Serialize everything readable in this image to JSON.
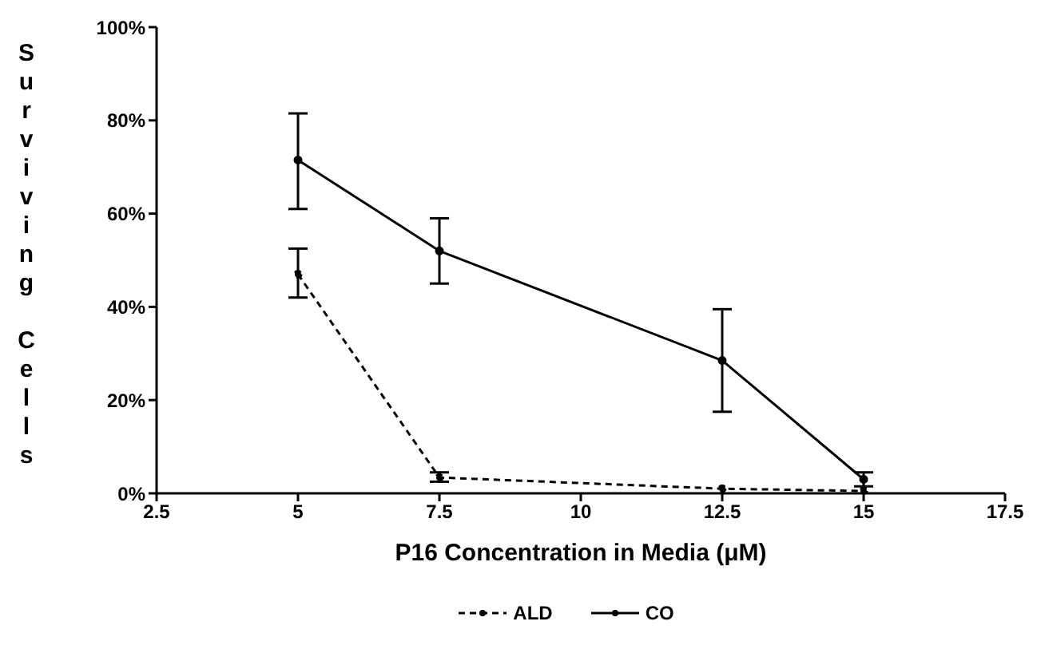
{
  "chart_data": {
    "type": "line",
    "xlabel": "P16 Concentration in Media (μM)",
    "ylabel": "Surviving Cells",
    "x": [
      5,
      7.5,
      12.5,
      15
    ],
    "series": [
      {
        "name": "ALD",
        "color": "#000000",
        "line_style": "dashed",
        "values": [
          47,
          3.4,
          1,
          0.5
        ],
        "errors": [
          [
            42,
            52.5
          ],
          [
            2.5,
            4.5
          ],
          null,
          null
        ]
      },
      {
        "name": "CO",
        "color": "#000000",
        "line_style": "solid",
        "values": [
          71.5,
          52,
          28.5,
          3
        ],
        "errors": [
          [
            61,
            81.5
          ],
          [
            45,
            59
          ],
          [
            17.5,
            39.5
          ],
          [
            1.5,
            4.5
          ]
        ]
      }
    ],
    "xlim": [
      2.5,
      17.5
    ],
    "xticks": [
      2.5,
      5,
      7.5,
      10,
      12.5,
      15,
      17.5
    ],
    "ylim": [
      0,
      100
    ],
    "yticks": [
      {
        "value": 0,
        "label": "0%"
      },
      {
        "value": 20,
        "label": "20%"
      },
      {
        "value": 40,
        "label": "40%"
      },
      {
        "value": 60,
        "label": "60%"
      },
      {
        "value": 80,
        "label": "80%"
      },
      {
        "value": 100,
        "label": "100%"
      }
    ],
    "grid": false,
    "legend": "bottom",
    "marker": "circle"
  }
}
